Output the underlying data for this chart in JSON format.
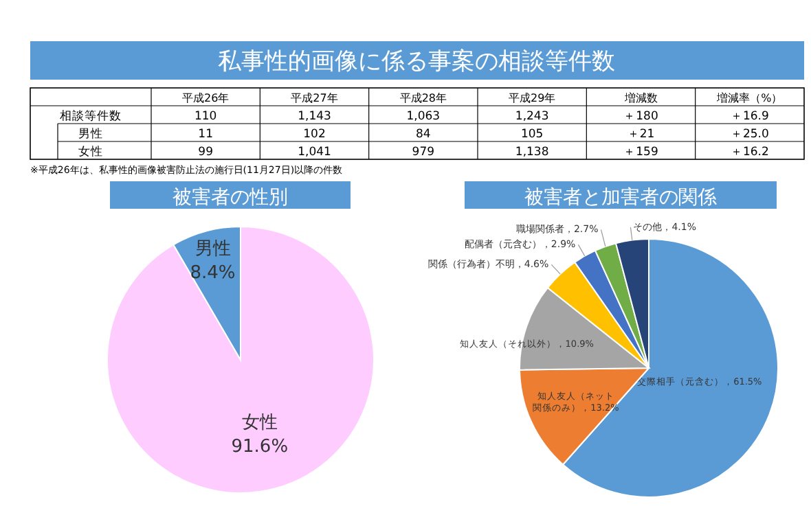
{
  "chart_data": [
    {
      "type": "other",
      "title": "私事性的画像に係る事案の相談等件数",
      "categories": [
        "平成26年",
        "平成27年",
        "平成28年",
        "平成29年",
        "増減数",
        "増減率（%）"
      ],
      "series": [
        {
          "name": "相談等件数",
          "values": [
            110,
            1143,
            1063,
            1243,
            180,
            16.9
          ],
          "value_labels": [
            "110",
            "1,143",
            "1,063",
            "1,243",
            "＋180",
            "＋16.9"
          ]
        },
        {
          "name": "男性",
          "values": [
            11,
            102,
            84,
            105,
            21,
            25.0
          ],
          "value_labels": [
            "11",
            "102",
            "84",
            "105",
            "＋21",
            "＋25.0"
          ]
        },
        {
          "name": "女性",
          "values": [
            99,
            1041,
            979,
            1138,
            159,
            16.2
          ],
          "value_labels": [
            "99",
            "1,041",
            "979",
            "1,138",
            "＋159",
            "＋16.2"
          ]
        }
      ],
      "annotations": [
        "※平成26年は、私事性的画像被害防止法の施行日(11月27日)以降の件数"
      ]
    },
    {
      "type": "pie",
      "title": "被害者の性別",
      "categories": [
        "女性",
        "男性"
      ],
      "values": [
        91.6,
        8.4
      ],
      "value_labels": [
        "91.6%",
        "8.4%"
      ],
      "colors": [
        "#ffccff",
        "#5b9bd5"
      ]
    },
    {
      "type": "pie",
      "title": "被害者と加害者の関係",
      "categories": [
        "交際相手（元含む）",
        "知人友人（ネット関係のみ）",
        "知人友人（それ以外）",
        "関係（行為者）不明",
        "配偶者（元含む）",
        "職場関係者",
        "その他"
      ],
      "values": [
        61.5,
        13.2,
        10.9,
        4.6,
        2.9,
        2.7,
        4.1
      ],
      "value_labels": [
        "61.5%",
        "13.2%",
        "10.9%",
        "4.6%",
        "2.9%",
        "2.7%",
        "4.1%"
      ],
      "colors": [
        "#5b9bd5",
        "#ed7d31",
        "#a5a5a5",
        "#ffc000",
        "#4472c4",
        "#70ad47",
        "#264478"
      ]
    }
  ]
}
